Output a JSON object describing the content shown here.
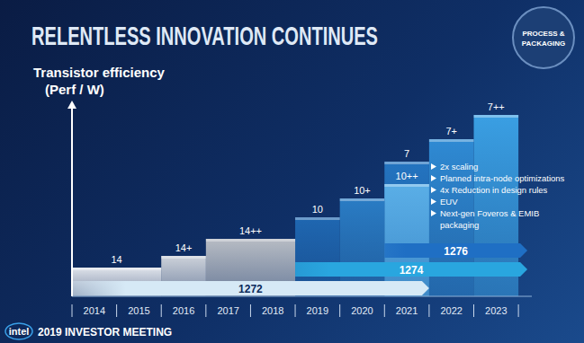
{
  "chart_data": {
    "type": "bar",
    "title": "RELENTLESS INNOVATION CONTINUES",
    "y_label": "Transistor efficiency (Perf / W)",
    "categories": [
      "14",
      "14+",
      "14++",
      "10",
      "10+",
      "10++",
      "7",
      "7+",
      "7++"
    ],
    "values": [
      32,
      45,
      64,
      88,
      109,
      125,
      150,
      175,
      202
    ],
    "x_start": [
      2014,
      2016,
      2017,
      2019,
      2020,
      2021,
      2021,
      2022,
      2023
    ],
    "x_end": [
      2016,
      2017,
      2019,
      2020,
      2021,
      2022,
      2022,
      2023,
      2024
    ],
    "colors": [
      "#dfe3ea",
      "#cdd2da",
      "#b7bcc4",
      "#1f67b1",
      "#2a7cc4",
      "#5aaee6",
      "#2474c0",
      "#2f8ad3",
      "#3a9fe3"
    ],
    "lanes": [
      {
        "name": "1272",
        "start": 2014,
        "end": 2022,
        "color": "#d6e9f6"
      },
      {
        "name": "1274",
        "start": 2019,
        "end": 2024.2,
        "color": "#29a6df"
      },
      {
        "name": "1276",
        "start": 2021,
        "end": 2024.2,
        "color": "#1f6fc4"
      }
    ],
    "annotations": [
      "2x scaling",
      "Planned intra-node optimizations",
      "4x Reduction in design rules",
      "EUV",
      "Next-gen Foveros & EMIB packaging"
    ],
    "xlim": [
      2014,
      2024.3
    ],
    "xticks": [
      {
        "value": 2014.5,
        "label": "2014"
      },
      {
        "value": 2015.5,
        "label": "2015"
      },
      {
        "value": 2016.5,
        "label": "2016"
      },
      {
        "value": 2017.5,
        "label": "2017"
      },
      {
        "value": 2018.5,
        "label": "2018"
      },
      {
        "value": 2019.5,
        "label": "2019"
      },
      {
        "value": 2020.5,
        "label": "2020"
      },
      {
        "value": 2021.5,
        "label": "2021"
      },
      {
        "value": 2022.5,
        "label": "2022"
      },
      {
        "value": 2023.5,
        "label": "2023"
      }
    ],
    "ylim": [
      0,
      210
    ],
    "yticks": [],
    "tick_labels": "x",
    "logo": "intel",
    "footer": "2019 INVESTOR MEETING",
    "badge": "PROCESS & PACKAGING"
  }
}
